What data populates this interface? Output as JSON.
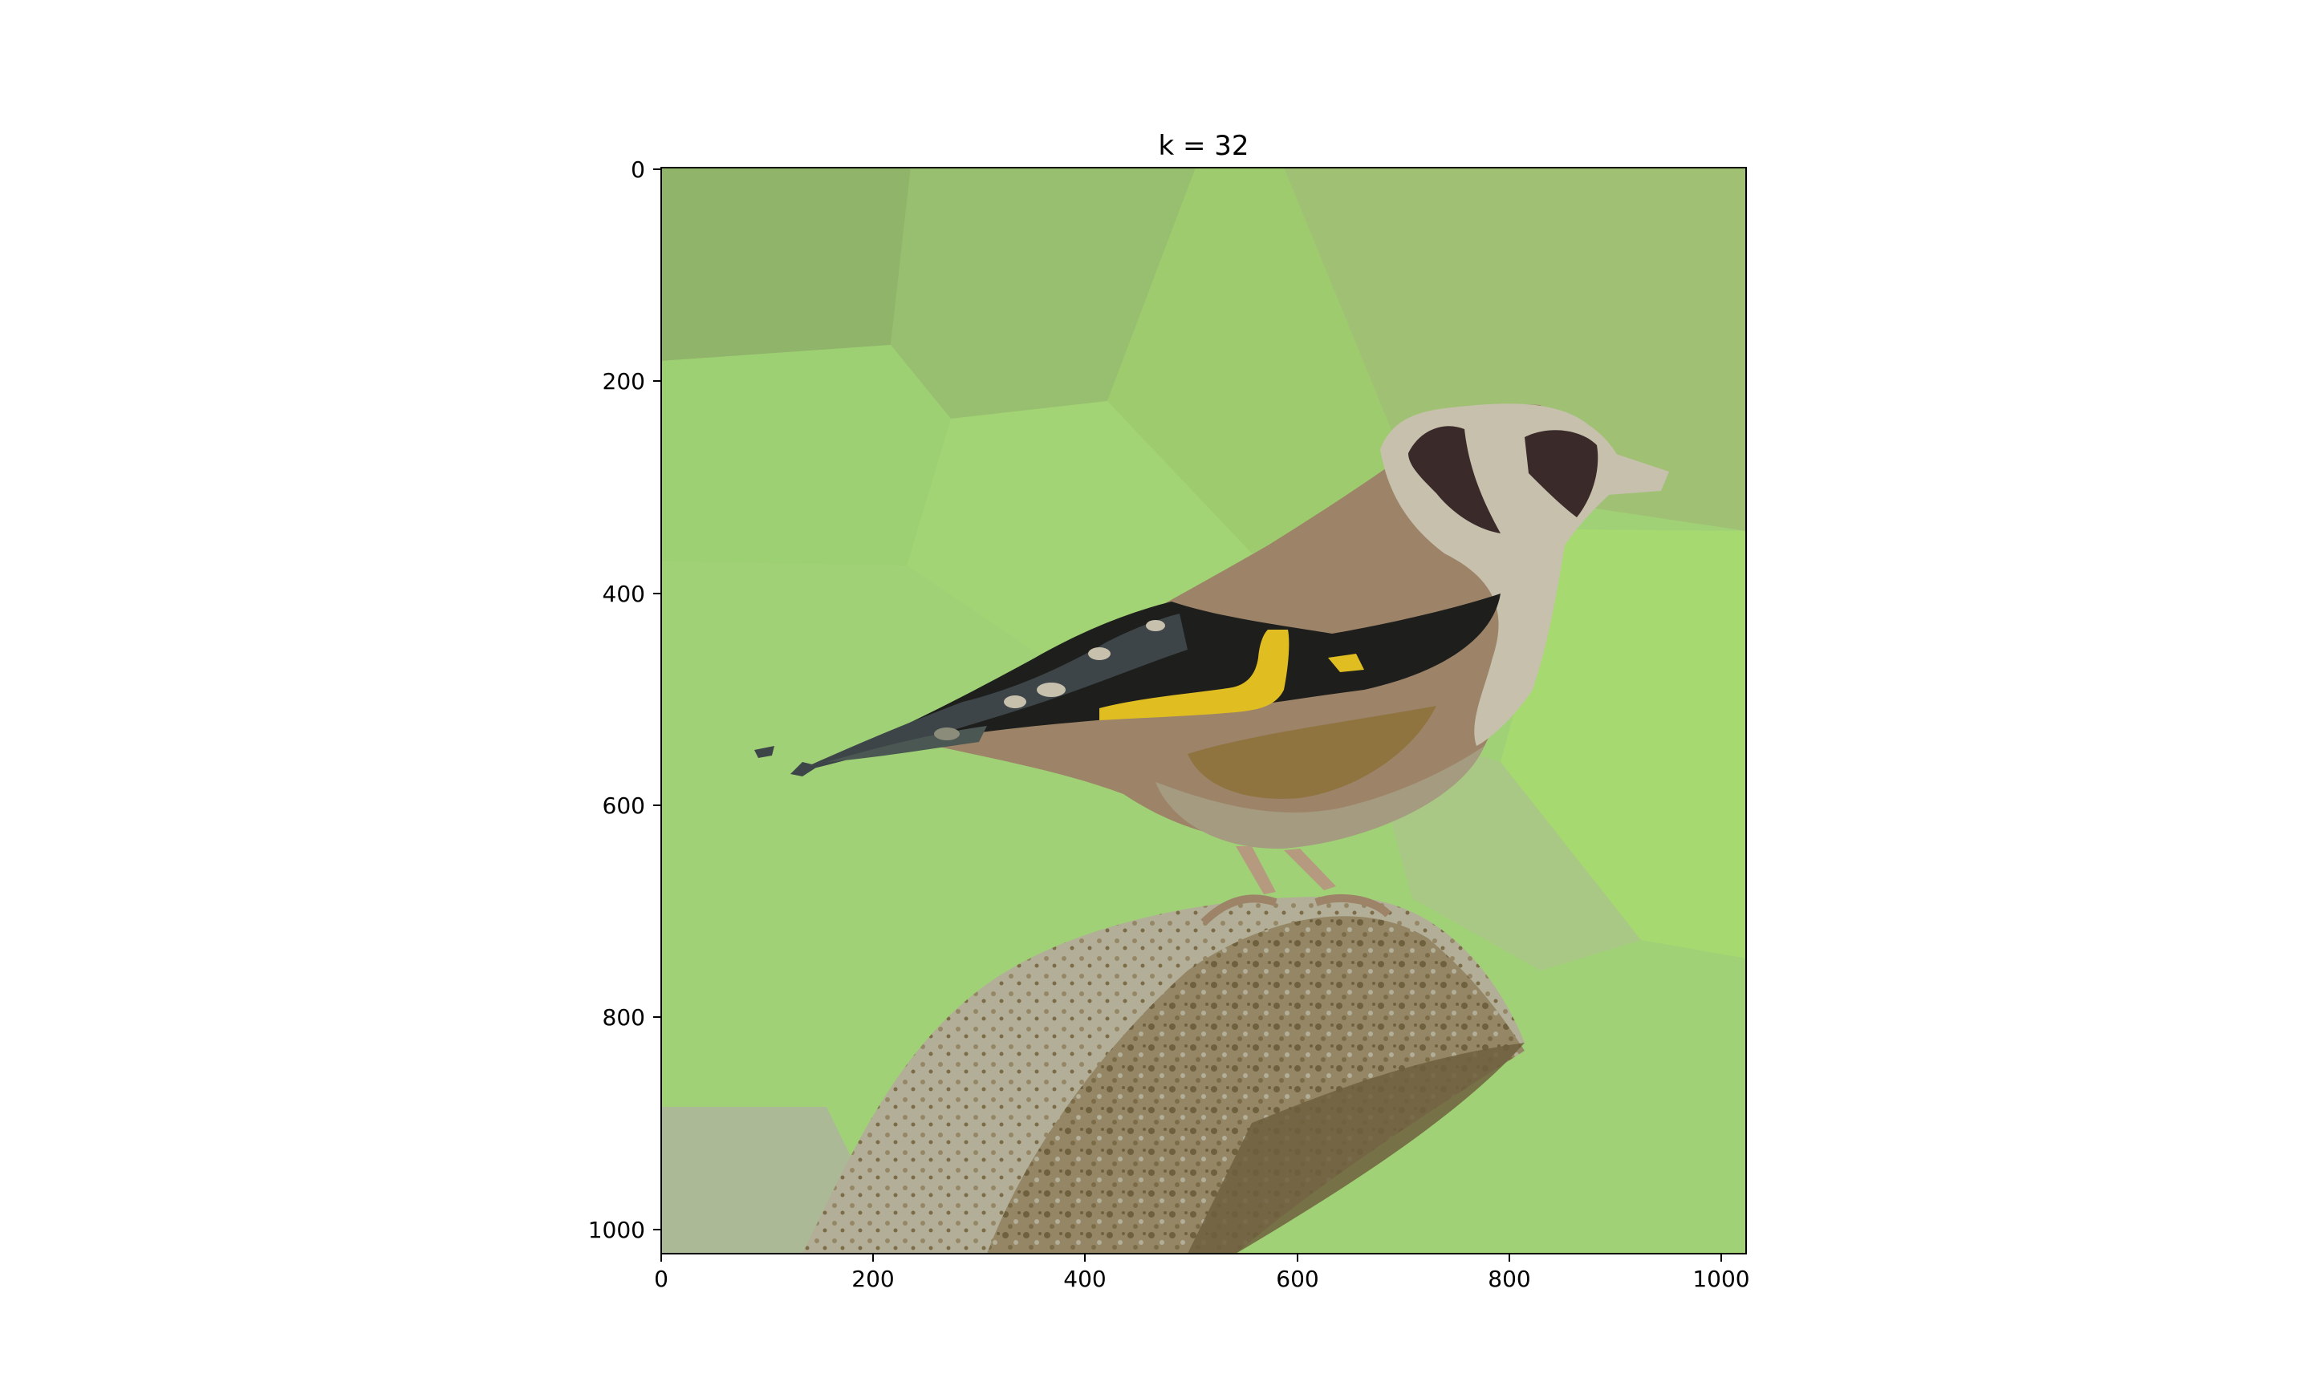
{
  "figure": {
    "title": "k = 32",
    "x_ticks": [
      "0",
      "200",
      "400",
      "600",
      "800",
      "1000"
    ],
    "y_ticks": [
      "0",
      "200",
      "400",
      "600",
      "800",
      "1000"
    ]
  },
  "image": {
    "subject": "goldfinch perched on a mossy tree stump",
    "palette": {
      "background_dark": "#8fb46a",
      "background_mid": "#98be70",
      "background_light": "#a1d177",
      "background_pale": "#a9c885",
      "bird_face_light": "#c6c0ad",
      "bird_dark": "#3a2a2a",
      "bird_body": "#9d8468",
      "wing_black": "#1e1f1d",
      "wing_grey": "#3d4548",
      "wing_yellow": "#e0be22",
      "stump_light": "#b2ae98",
      "stump_mid": "#958766",
      "stump_dark": "#6f603e"
    }
  }
}
